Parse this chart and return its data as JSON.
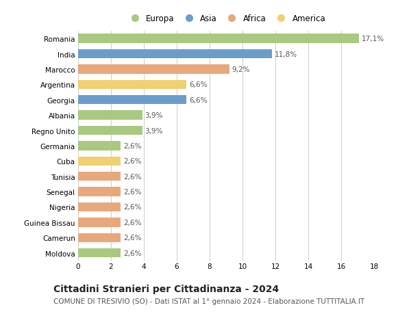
{
  "countries": [
    "Romania",
    "India",
    "Marocco",
    "Argentina",
    "Georgia",
    "Albania",
    "Regno Unito",
    "Germania",
    "Cuba",
    "Tunisia",
    "Senegal",
    "Nigeria",
    "Guinea Bissau",
    "Camerun",
    "Moldova"
  ],
  "values": [
    17.1,
    11.8,
    9.2,
    6.6,
    6.6,
    3.9,
    3.9,
    2.6,
    2.6,
    2.6,
    2.6,
    2.6,
    2.6,
    2.6,
    2.6
  ],
  "labels": [
    "17,1%",
    "11,8%",
    "9,2%",
    "6,6%",
    "6,6%",
    "3,9%",
    "3,9%",
    "2,6%",
    "2,6%",
    "2,6%",
    "2,6%",
    "2,6%",
    "2,6%",
    "2,6%",
    "2,6%"
  ],
  "continents": [
    "Europa",
    "Asia",
    "Africa",
    "America",
    "Asia",
    "Europa",
    "Europa",
    "Europa",
    "America",
    "Africa",
    "Africa",
    "Africa",
    "Africa",
    "Africa",
    "Europa"
  ],
  "colors": {
    "Europa": "#a8c97f",
    "Asia": "#6b9dcc",
    "Africa": "#e8a87c",
    "America": "#f0d070"
  },
  "legend_order": [
    "Europa",
    "Asia",
    "Africa",
    "America"
  ],
  "title": "Cittadini Stranieri per Cittadinanza - 2024",
  "subtitle": "COMUNE DI TRESIVIO (SO) - Dati ISTAT al 1° gennaio 2024 - Elaborazione TUTTITALIA.IT",
  "xlim": [
    0,
    18
  ],
  "xticks": [
    0,
    2,
    4,
    6,
    8,
    10,
    12,
    14,
    16,
    18
  ],
  "background_color": "#ffffff",
  "grid_color": "#cccccc",
  "bar_height": 0.6,
  "label_fontsize": 7.5,
  "tick_fontsize": 7.5,
  "title_fontsize": 10,
  "subtitle_fontsize": 7.5,
  "legend_fontsize": 8.5
}
